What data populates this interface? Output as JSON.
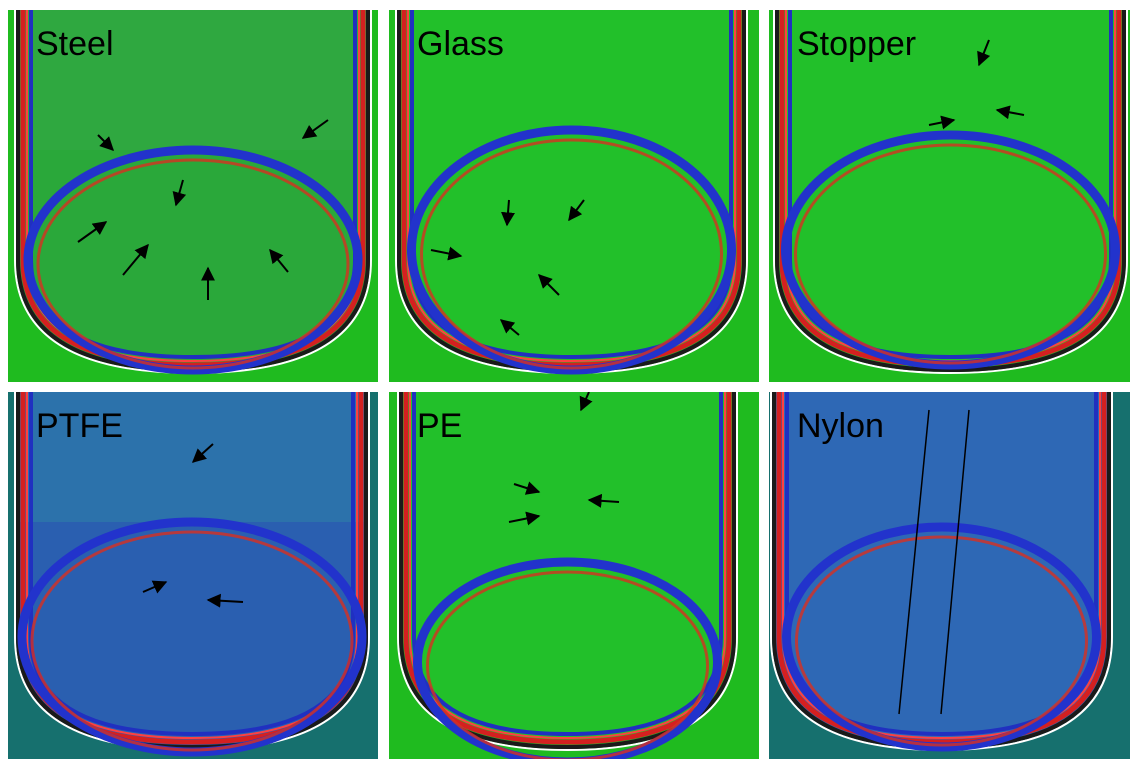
{
  "panels": [
    {
      "label": "Steel"
    },
    {
      "label": "Glass"
    },
    {
      "label": "Stopper"
    },
    {
      "label": "PTFE"
    },
    {
      "label": "PE"
    },
    {
      "label": "Nylon"
    }
  ]
}
